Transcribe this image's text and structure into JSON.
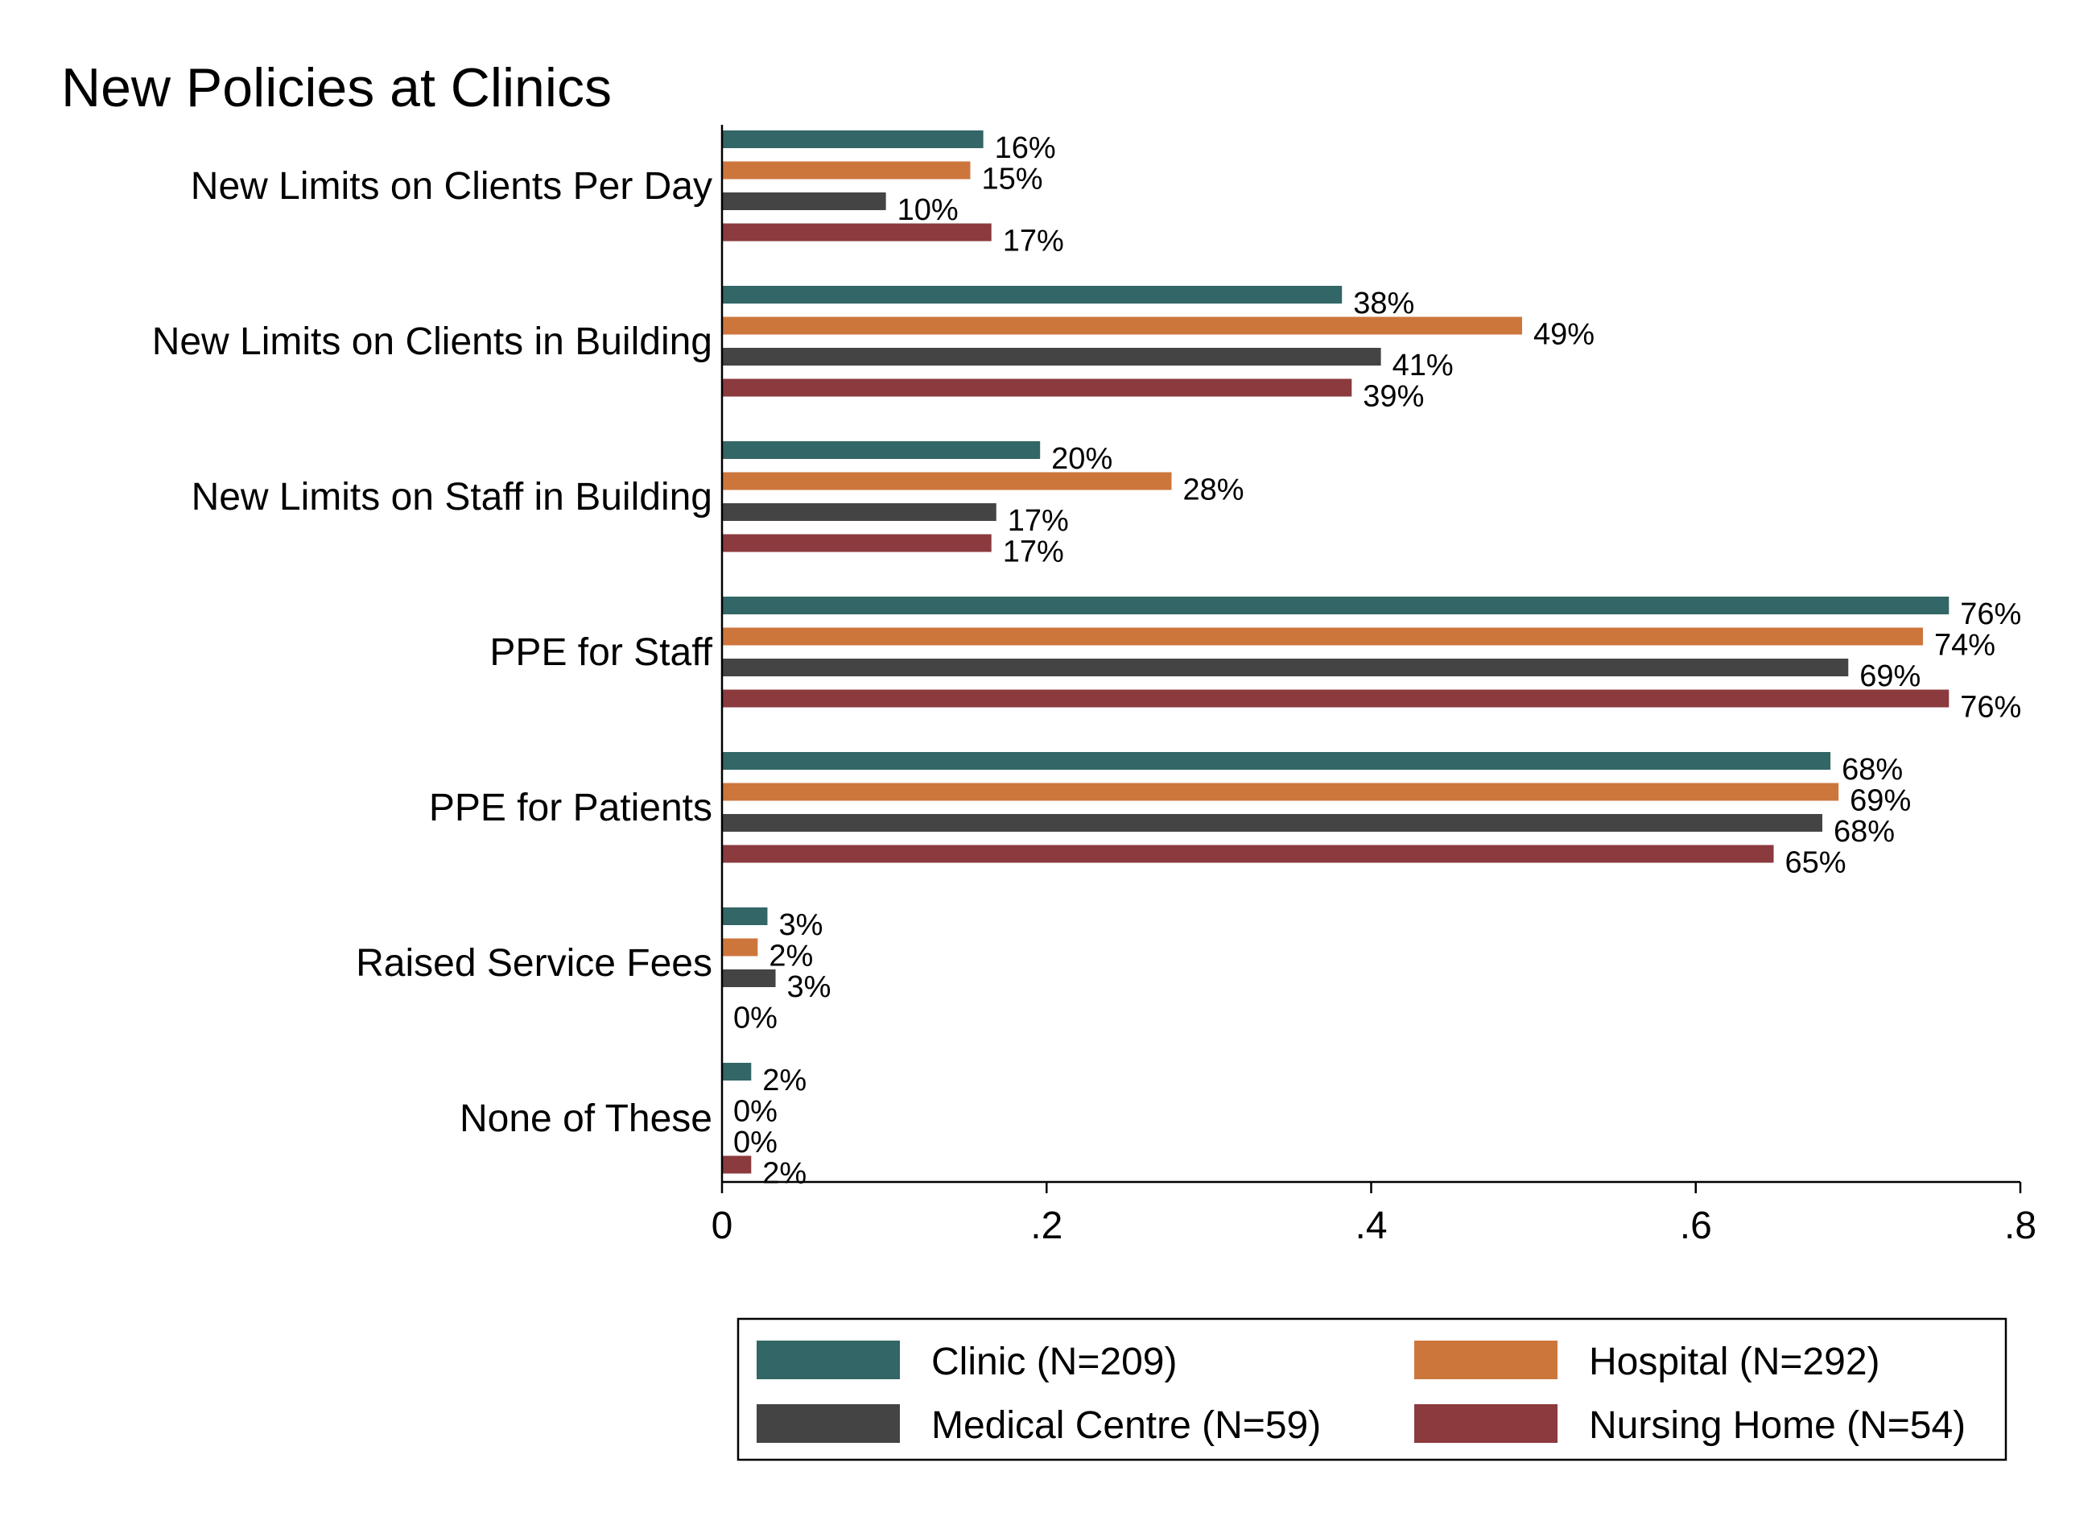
{
  "chart_data": {
    "type": "bar",
    "orientation": "horizontal",
    "title": "New Policies at Clinics",
    "categories": [
      "New Limits on Clients Per Day",
      "New Limits on Clients in Building",
      "New Limits on Staff in Building",
      "PPE for Staff",
      "PPE for Patients",
      "Raised Service Fees",
      "None of These"
    ],
    "series": [
      {
        "name": "Clinic (N=209)",
        "color": "#336666",
        "values": [
          0.161,
          0.382,
          0.196,
          0.756,
          0.683,
          0.028,
          0.018
        ],
        "labels": [
          "16%",
          "38%",
          "20%",
          "76%",
          "68%",
          "3%",
          "2%"
        ]
      },
      {
        "name": "Hospital (N=292)",
        "color": "#cd763c",
        "values": [
          0.153,
          0.493,
          0.277,
          0.74,
          0.688,
          0.022,
          0.0
        ],
        "labels": [
          "15%",
          "49%",
          "28%",
          "74%",
          "69%",
          "2%",
          "0%"
        ]
      },
      {
        "name": "Medical Centre (N=59)",
        "color": "#444444",
        "values": [
          0.101,
          0.406,
          0.169,
          0.694,
          0.678,
          0.033,
          0.0
        ],
        "labels": [
          "10%",
          "41%",
          "17%",
          "69%",
          "68%",
          "3%",
          "0%"
        ]
      },
      {
        "name": "Nursing Home (N=54)",
        "color": "#8b3a3e",
        "values": [
          0.166,
          0.388,
          0.166,
          0.756,
          0.648,
          0.0,
          0.018
        ],
        "labels": [
          "17%",
          "39%",
          "17%",
          "76%",
          "65%",
          "0%",
          "2%"
        ]
      }
    ],
    "xlim": [
      0,
      0.8
    ],
    "xticks": [
      0,
      0.2,
      0.4,
      0.6,
      0.8
    ],
    "xtick_labels": [
      "0",
      ".2",
      ".4",
      ".6",
      ".8"
    ],
    "grid": false,
    "legend_position": "bottom"
  }
}
